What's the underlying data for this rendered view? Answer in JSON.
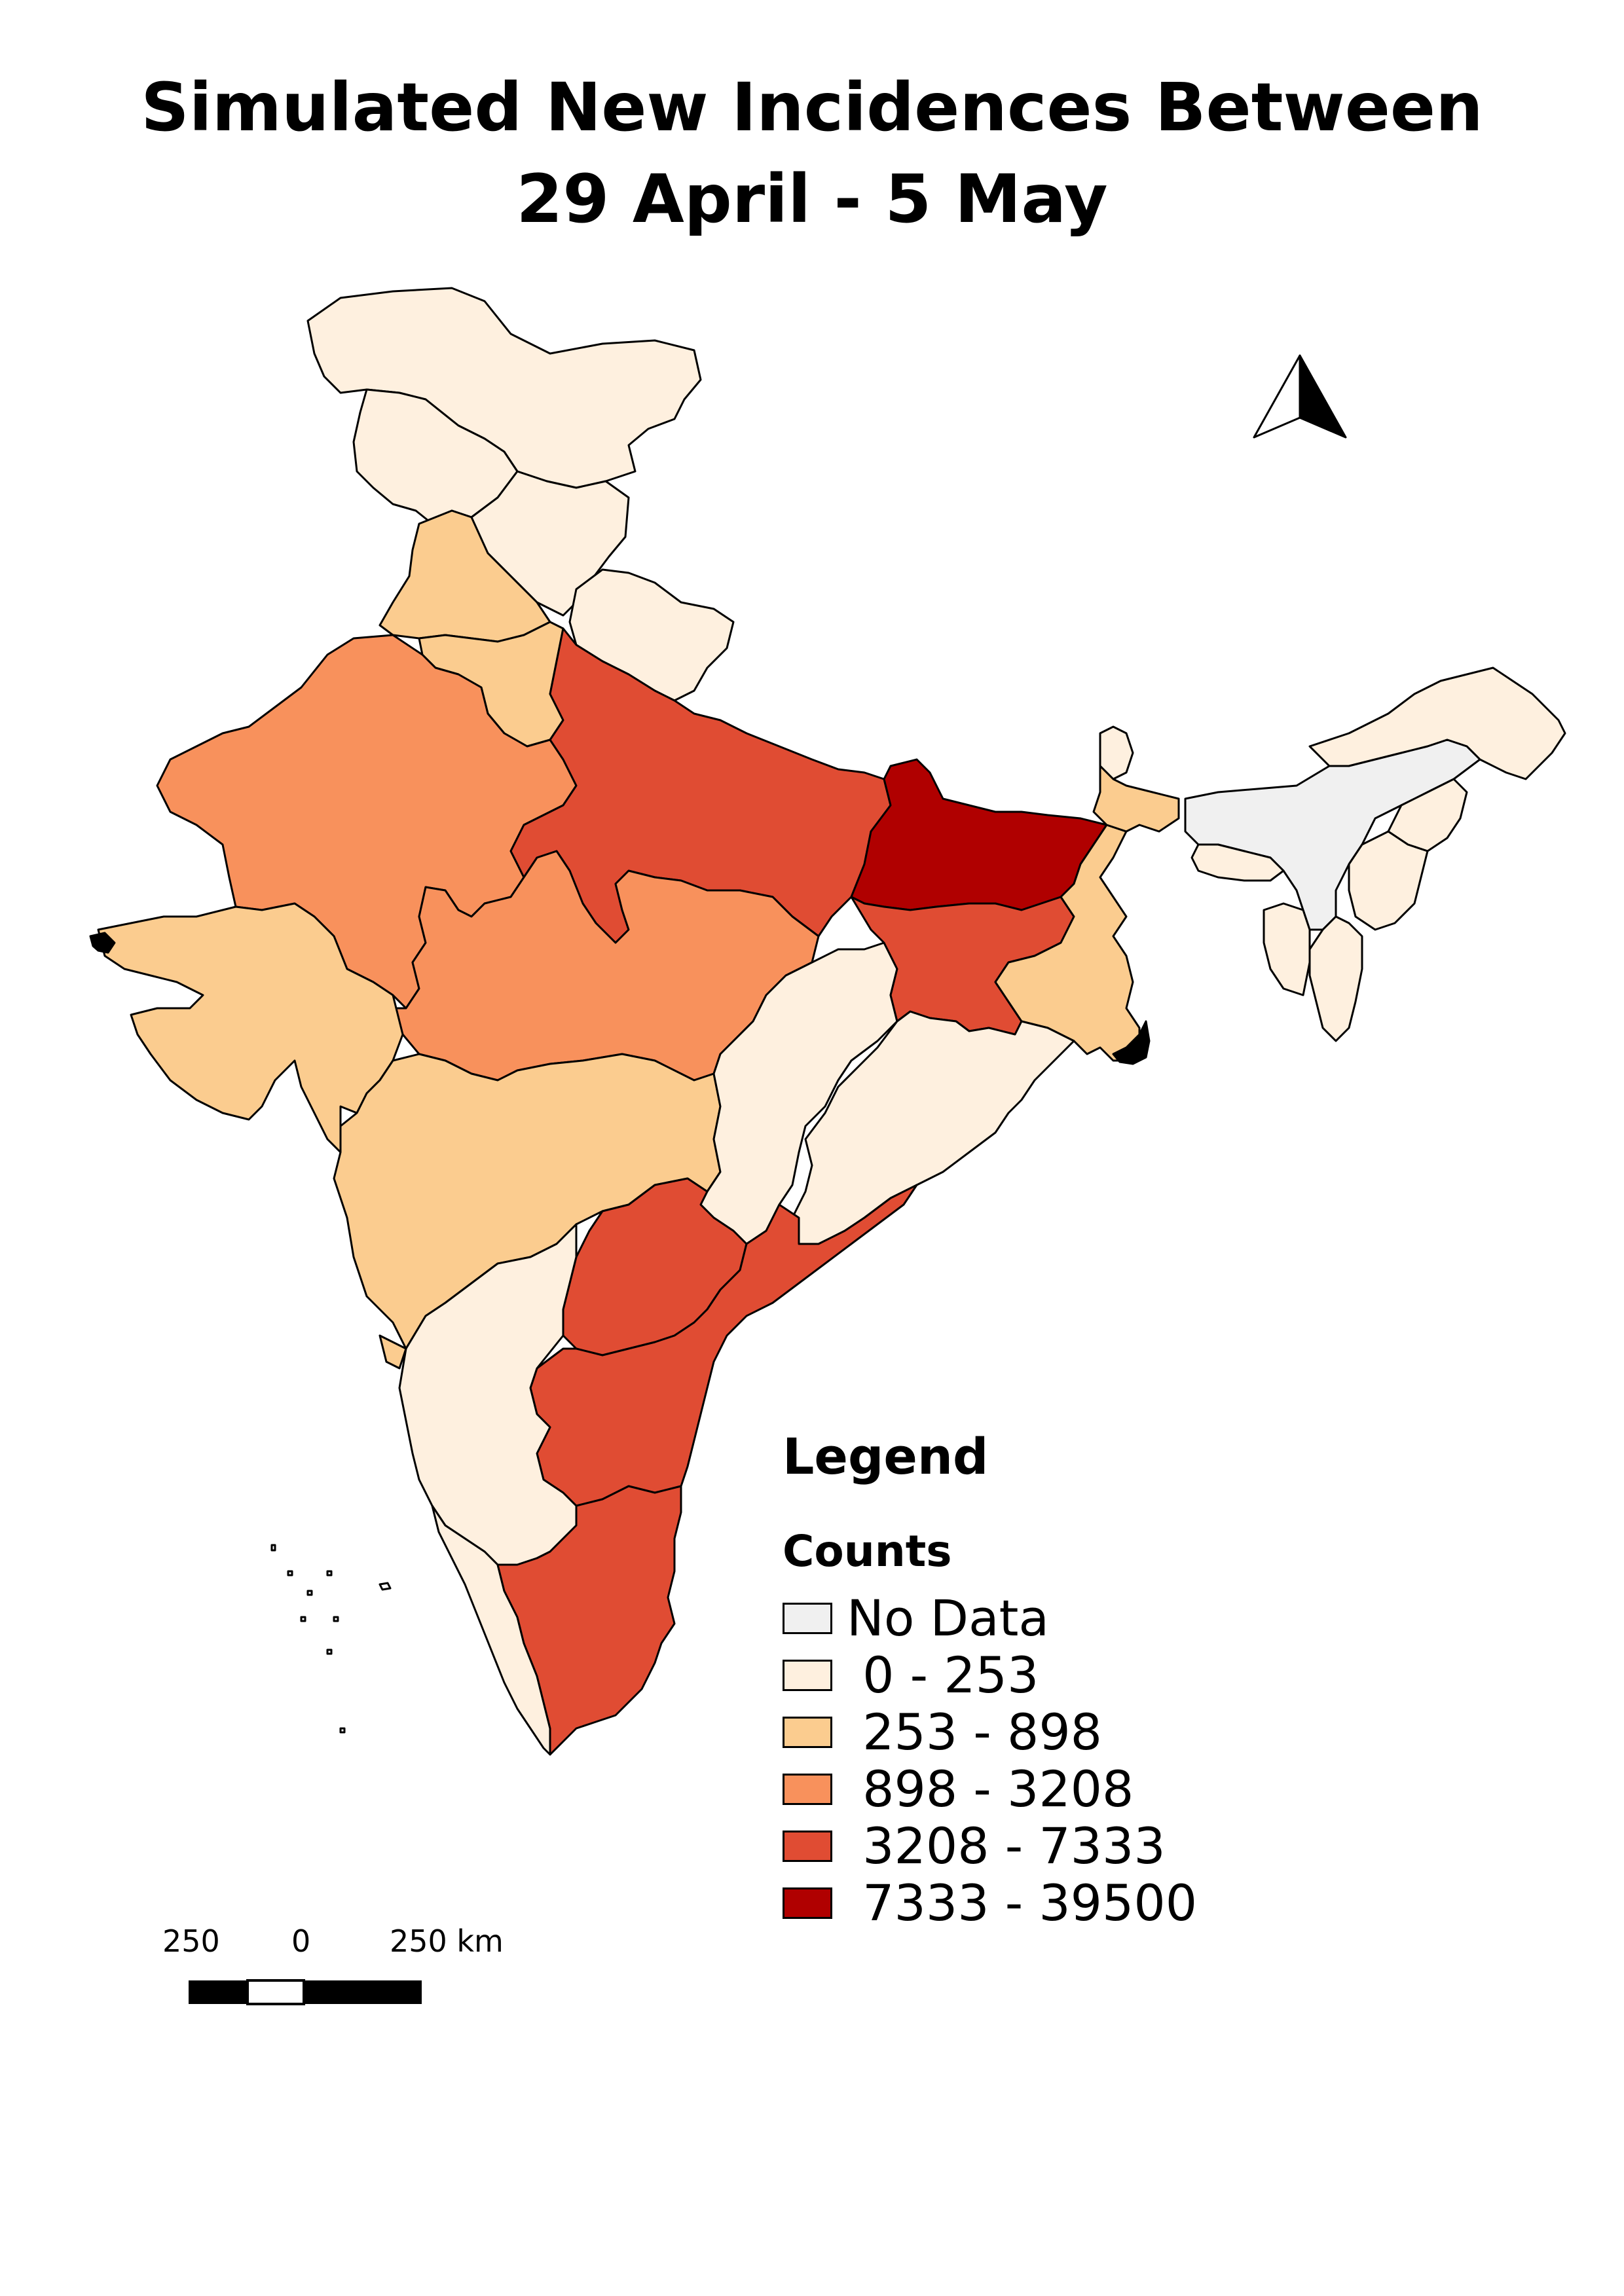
{
  "title": {
    "line1": "Simulated New Incidences Between",
    "line2": "29 April - 5 May"
  },
  "legend": {
    "title": "Legend",
    "subtitle": "Counts",
    "items": [
      {
        "label": "No Data",
        "color": "#f0f0f0"
      },
      {
        "label": " 0 - 253",
        "color": "#fef0df"
      },
      {
        "label": " 253 - 898",
        "color": "#fbcc8f"
      },
      {
        "label": " 898 - 3208",
        "color": "#f8915c"
      },
      {
        "label": " 3208 - 7333",
        "color": "#e04c33"
      },
      {
        "label": " 7333 - 39500",
        "color": "#b00000"
      }
    ]
  },
  "scalebar": {
    "labels": [
      "250",
      "0",
      "250 km"
    ]
  },
  "north_arrow": {
    "icon": "north-arrow-icon"
  }
}
